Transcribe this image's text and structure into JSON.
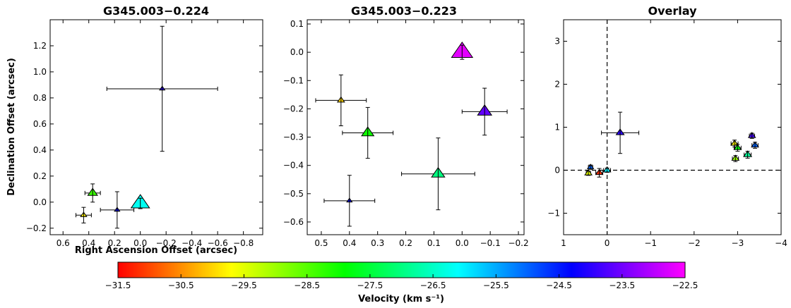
{
  "colors": {
    "colorbar_stops": [
      "#ff0000",
      "#ffff00",
      "#00ff00",
      "#00ffff",
      "#0000ff",
      "#ff00ff"
    ]
  },
  "chart_data": [
    {
      "type": "scatter",
      "title": "G345.003−0.224",
      "xlabel": "Right Ascension Offset (arcsec)",
      "ylabel": "Declination Offset (arcsec)",
      "xlim": [
        0.7,
        -0.95
      ],
      "ylim": [
        -0.25,
        1.4
      ],
      "xticks": [
        0.6,
        0.4,
        0.2,
        0.0,
        -0.2,
        -0.4,
        -0.6,
        -0.8
      ],
      "xtick_labels": [
        "0.6",
        "0.4",
        "0.2",
        "0.0",
        "−0.2",
        "−0.4",
        "−0.6",
        "−0.8"
      ],
      "yticks": [
        -0.2,
        0.0,
        0.2,
        0.4,
        0.6,
        0.8,
        1.0,
        1.2
      ],
      "ytick_labels": [
        "−0.2",
        "0.0",
        "0.2",
        "0.4",
        "0.6",
        "0.8",
        "1.0",
        "1.2"
      ],
      "points": [
        {
          "x": -0.17,
          "y": 0.87,
          "xerr": 0.43,
          "yerr": 0.48,
          "velocity": -24.0,
          "size": 6
        },
        {
          "x": 0.37,
          "y": 0.07,
          "xerr": 0.06,
          "yerr": 0.07,
          "velocity": -28.3,
          "size": 11
        },
        {
          "x": 0.44,
          "y": -0.1,
          "xerr": 0.06,
          "yerr": 0.06,
          "velocity": -29.8,
          "size": 7
        },
        {
          "x": 0.18,
          "y": -0.06,
          "xerr": 0.13,
          "yerr": 0.14,
          "velocity": -24.3,
          "size": 6
        },
        {
          "x": 0.0,
          "y": -0.01,
          "xerr": 0.0,
          "yerr": 0.04,
          "velocity": -26.2,
          "size": 21
        }
      ]
    },
    {
      "type": "scatter",
      "title": "G345.003−0.223",
      "xlim": [
        0.55,
        -0.22
      ],
      "ylim": [
        -0.645,
        0.115
      ],
      "xticks": [
        0.5,
        0.4,
        0.3,
        0.2,
        0.1,
        0.0,
        -0.1,
        -0.2
      ],
      "xtick_labels": [
        "0.5",
        "0.4",
        "0.3",
        "0.2",
        "0.1",
        "0.0",
        "−0.1",
        "−0.2"
      ],
      "yticks": [
        -0.6,
        -0.5,
        -0.4,
        -0.3,
        -0.2,
        -0.1,
        0.0,
        0.1
      ],
      "ytick_labels": [
        "−0.6",
        "−0.5",
        "−0.4",
        "−0.3",
        "−0.2",
        "−0.1",
        "0.0",
        "0.1"
      ],
      "points": [
        {
          "x": 0.0,
          "y": 0.0,
          "xerr": 0.0,
          "yerr": 0.025,
          "velocity": -22.7,
          "size": 24
        },
        {
          "x": -0.08,
          "y": -0.21,
          "xerr": 0.08,
          "yerr": 0.083,
          "velocity": -23.6,
          "size": 16
        },
        {
          "x": 0.43,
          "y": -0.17,
          "xerr": 0.09,
          "yerr": 0.09,
          "velocity": -30.0,
          "size": 8
        },
        {
          "x": 0.335,
          "y": -0.285,
          "xerr": 0.09,
          "yerr": 0.09,
          "velocity": -28.0,
          "size": 14
        },
        {
          "x": 0.085,
          "y": -0.43,
          "xerr": 0.13,
          "yerr": 0.127,
          "velocity": -27.0,
          "size": 15
        },
        {
          "x": 0.4,
          "y": -0.525,
          "xerr": 0.09,
          "yerr": 0.09,
          "velocity": -24.3,
          "size": 6
        }
      ]
    },
    {
      "type": "scatter",
      "title": "Overlay",
      "xlim": [
        1.0,
        -4.0
      ],
      "ylim": [
        -1.5,
        3.5
      ],
      "xticks": [
        1,
        0,
        -1,
        -2,
        -3,
        -4
      ],
      "xtick_labels": [
        "1",
        "0",
        "−1",
        "−2",
        "−3",
        "−4"
      ],
      "yticks": [
        -1,
        0,
        1,
        2,
        3
      ],
      "ytick_labels": [
        "−1",
        "0",
        "1",
        "2",
        "3"
      ],
      "reference_lines": {
        "x": 0,
        "y": 0,
        "style": "dashed"
      },
      "points": [
        {
          "x": -0.3,
          "y": 0.87,
          "xerr": 0.43,
          "yerr": 0.48,
          "velocity": -24.0,
          "size": 9
        },
        {
          "x": 0.43,
          "y": -0.07,
          "xerr": 0.05,
          "yerr": 0.05,
          "velocity": -29.5,
          "size": 8
        },
        {
          "x": 0.38,
          "y": 0.07,
          "xerr": 0.05,
          "yerr": 0.05,
          "velocity": -25.0,
          "size": 7
        },
        {
          "x": 0.18,
          "y": -0.06,
          "xerr": 0.08,
          "yerr": 0.1,
          "velocity": -31.2,
          "size": 8
        },
        {
          "x": 0.0,
          "y": 0.0,
          "xerr": 0.08,
          "yerr": 0.05,
          "velocity": -26.0,
          "size": 8
        },
        {
          "x": -2.93,
          "y": 0.62,
          "xerr": 0.08,
          "yerr": 0.08,
          "velocity": -29.8,
          "size": 8
        },
        {
          "x": -3.0,
          "y": 0.52,
          "xerr": 0.08,
          "yerr": 0.08,
          "velocity": -27.8,
          "size": 8
        },
        {
          "x": -2.95,
          "y": 0.27,
          "xerr": 0.07,
          "yerr": 0.07,
          "velocity": -29.0,
          "size": 8
        },
        {
          "x": -3.23,
          "y": 0.36,
          "xerr": 0.08,
          "yerr": 0.08,
          "velocity": -26.8,
          "size": 9
        },
        {
          "x": -3.33,
          "y": 0.8,
          "xerr": 0.06,
          "yerr": 0.06,
          "velocity": -23.8,
          "size": 8
        },
        {
          "x": -3.4,
          "y": 0.58,
          "xerr": 0.07,
          "yerr": 0.07,
          "velocity": -25.0,
          "size": 8
        }
      ]
    }
  ],
  "colorbar": {
    "label": "Velocity (km s⁻¹)",
    "range": [
      -31.5,
      -22.5
    ],
    "ticks": [
      -31.5,
      -30.5,
      -29.5,
      -28.5,
      -27.5,
      -26.5,
      -25.5,
      -24.5,
      -23.5,
      -22.5
    ],
    "tick_labels": [
      "−31.5",
      "−30.5",
      "−29.5",
      "−28.5",
      "−27.5",
      "−26.5",
      "−25.5",
      "−24.5",
      "−23.5",
      "−22.5"
    ]
  }
}
